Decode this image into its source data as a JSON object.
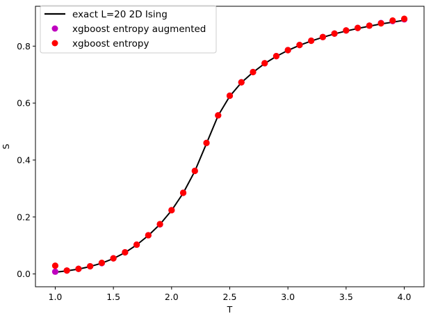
{
  "chart_data": {
    "type": "line",
    "title": "",
    "xlabel": "T",
    "ylabel": "S",
    "xlim": [
      0.83,
      4.17
    ],
    "ylim": [
      -0.045,
      0.94
    ],
    "xticks": [
      1.0,
      1.5,
      2.0,
      2.5,
      3.0,
      3.5,
      4.0
    ],
    "xtick_labels": [
      "1.0",
      "1.5",
      "2.0",
      "2.5",
      "3.0",
      "3.5",
      "4.0"
    ],
    "yticks": [
      0.0,
      0.2,
      0.4,
      0.6,
      0.8
    ],
    "ytick_labels": [
      "0.0",
      "0.2",
      "0.4",
      "0.6",
      "0.8"
    ],
    "grid": false,
    "legend_position": "top-left",
    "x": [
      1.0,
      1.1,
      1.2,
      1.3,
      1.4,
      1.5,
      1.6,
      1.7,
      1.8,
      1.9,
      2.0,
      2.1,
      2.2,
      2.3,
      2.4,
      2.5,
      2.6,
      2.7,
      2.8,
      2.9,
      3.0,
      3.1,
      3.2,
      3.3,
      3.4,
      3.5,
      3.6,
      3.7,
      3.8,
      3.9,
      4.0
    ],
    "series": [
      {
        "name": "exact L=20 2D Ising",
        "kind": "line",
        "color": "#000000",
        "values": [
          0.006,
          0.011,
          0.017,
          0.026,
          0.038,
          0.054,
          0.075,
          0.102,
          0.135,
          0.174,
          0.223,
          0.284,
          0.361,
          0.458,
          0.556,
          0.624,
          0.672,
          0.708,
          0.739,
          0.764,
          0.785,
          0.803,
          0.818,
          0.831,
          0.843,
          0.853,
          0.862,
          0.87,
          0.878,
          0.884,
          0.891
        ]
      },
      {
        "name": "xgboost entropy augmented",
        "kind": "scatter",
        "color": "#bf00bf",
        "values": [
          0.008,
          0.012,
          0.018,
          0.027,
          0.038,
          0.055,
          0.076,
          0.103,
          0.136,
          0.174,
          0.224,
          0.285,
          0.362,
          0.46,
          0.557,
          0.626,
          0.673,
          0.709,
          0.74,
          0.765,
          0.786,
          0.804,
          0.819,
          0.832,
          0.844,
          0.855,
          0.864,
          0.872,
          0.881,
          0.888,
          0.894
        ]
      },
      {
        "name": "xgboost entropy",
        "kind": "scatter",
        "color": "#ff0000",
        "values": [
          0.029,
          0.012,
          0.018,
          0.027,
          0.039,
          0.055,
          0.076,
          0.103,
          0.136,
          0.175,
          0.224,
          0.285,
          0.362,
          0.46,
          0.557,
          0.626,
          0.673,
          0.709,
          0.74,
          0.765,
          0.786,
          0.804,
          0.819,
          0.832,
          0.844,
          0.855,
          0.864,
          0.872,
          0.88,
          0.89,
          0.896
        ]
      }
    ]
  }
}
